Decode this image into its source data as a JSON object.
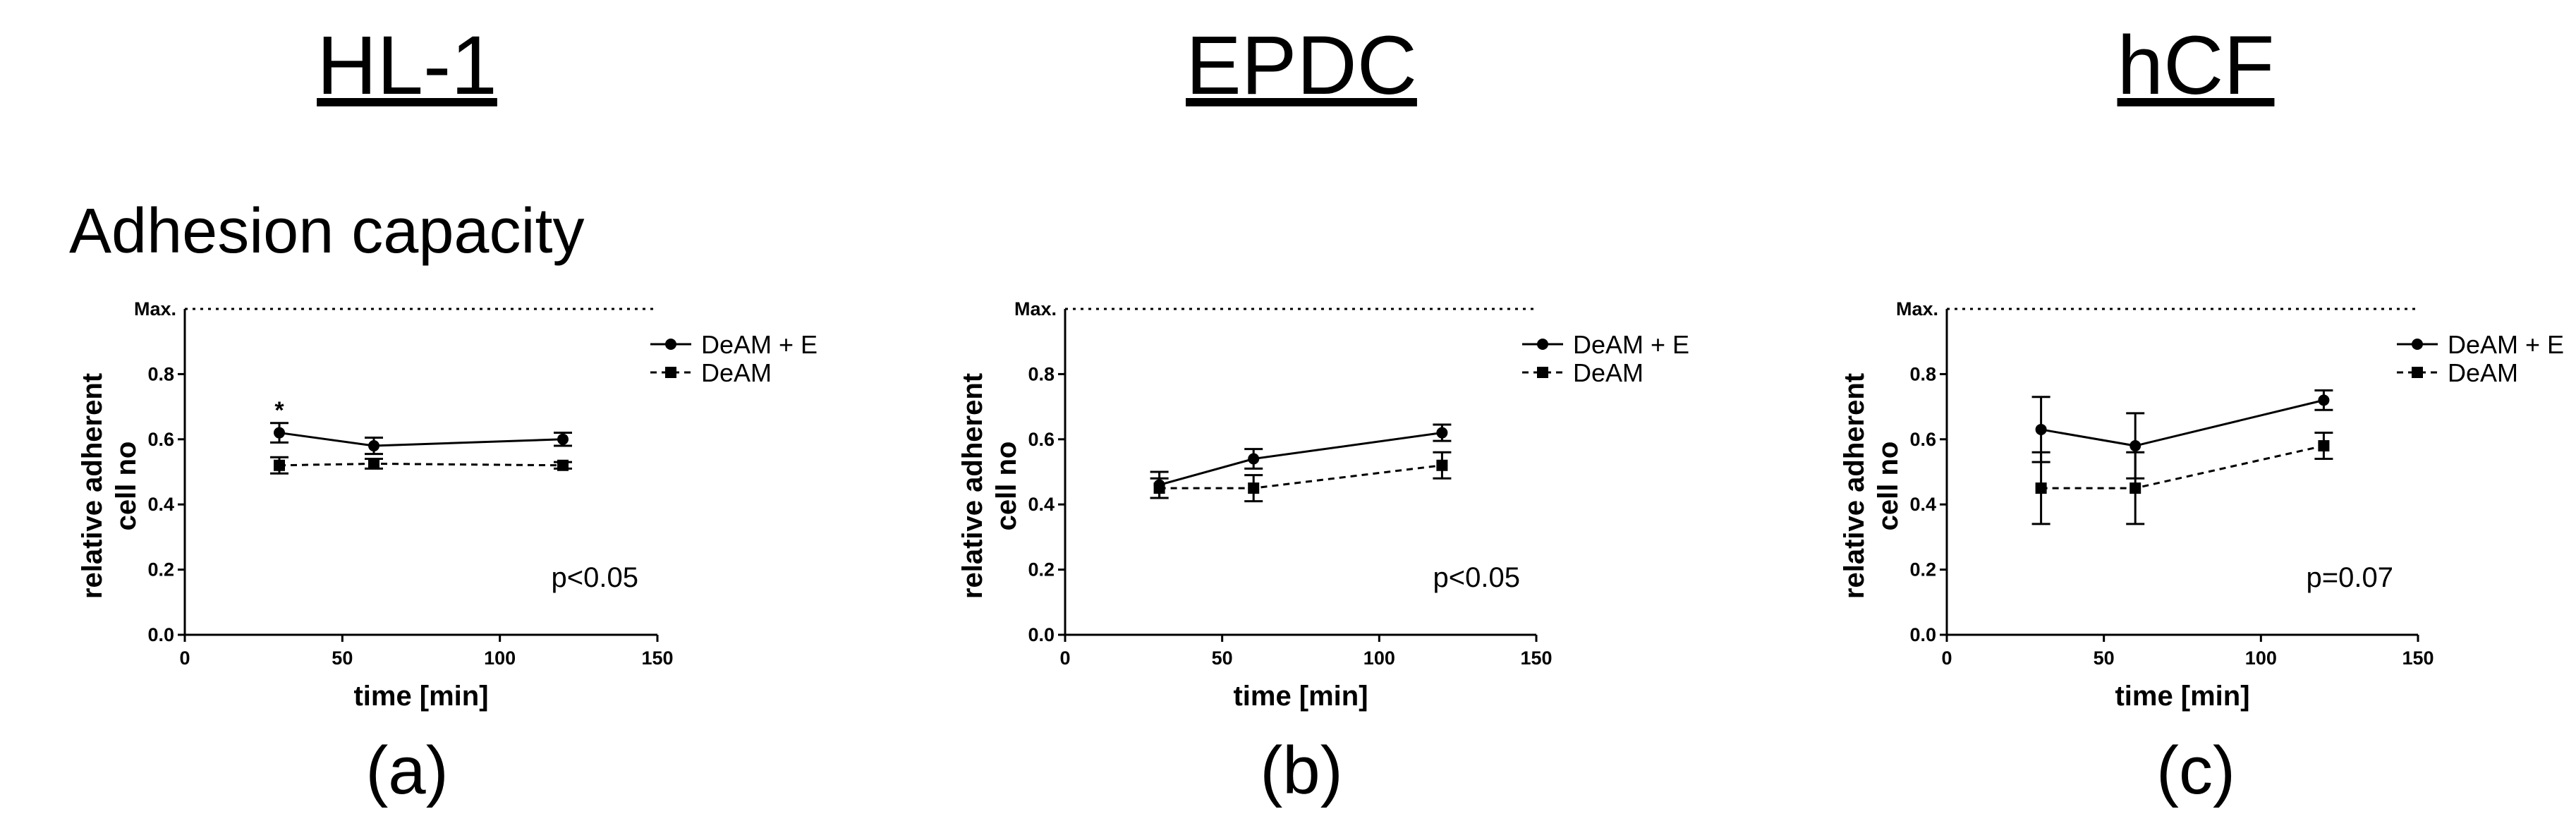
{
  "figure": {
    "section_title": "Adhesion capacity",
    "max_label": "Max."
  },
  "chart_data": [
    {
      "type": "line",
      "header": "HL-1",
      "panel_label": "(a)",
      "xlabel": "time [min]",
      "ylabel": [
        "relative adherent",
        "cell no"
      ],
      "xlim": [
        0,
        150
      ],
      "ylim": [
        0,
        1.0
      ],
      "xticks": [
        "0",
        "50",
        "100",
        "150"
      ],
      "yticks": [
        "0.0",
        "0.2",
        "0.4",
        "0.6",
        "0.8"
      ],
      "p_value": "p<0.05",
      "annotation": "*",
      "annotation_x": 30,
      "annotation_y": 0.665,
      "grid": false,
      "legend_position": "top-right",
      "series": [
        {
          "name": "DeAM + E",
          "marker": "circle",
          "line": "solid",
          "x": [
            30,
            60,
            120
          ],
          "y": [
            0.62,
            0.58,
            0.6
          ],
          "err": [
            0.03,
            0.025,
            0.02
          ]
        },
        {
          "name": "DeAM",
          "marker": "square",
          "line": "dashed",
          "x": [
            30,
            60,
            120
          ],
          "y": [
            0.52,
            0.525,
            0.52
          ],
          "err": [
            0.025,
            0.015,
            0.01
          ]
        }
      ]
    },
    {
      "type": "line",
      "header": "EPDC",
      "panel_label": "(b)",
      "xlabel": "time [min]",
      "ylabel": [
        "relative adherent",
        "cell no"
      ],
      "xlim": [
        0,
        150
      ],
      "ylim": [
        0,
        1.0
      ],
      "xticks": [
        "0",
        "50",
        "100",
        "150"
      ],
      "yticks": [
        "0.0",
        "0.2",
        "0.4",
        "0.6",
        "0.8"
      ],
      "p_value": "p<0.05",
      "grid": false,
      "legend_position": "top-right",
      "series": [
        {
          "name": "DeAM + E",
          "marker": "circle",
          "line": "solid",
          "x": [
            30,
            60,
            120
          ],
          "y": [
            0.46,
            0.54,
            0.62
          ],
          "err": [
            0.04,
            0.03,
            0.025
          ]
        },
        {
          "name": "DeAM",
          "marker": "square",
          "line": "dashed",
          "x": [
            30,
            60,
            120
          ],
          "y": [
            0.45,
            0.45,
            0.52
          ],
          "err": [
            0.03,
            0.04,
            0.04
          ]
        }
      ]
    },
    {
      "type": "line",
      "header": "hCF",
      "panel_label": "(c)",
      "xlabel": "time [min]",
      "ylabel": [
        "relative adherent",
        "cell no"
      ],
      "xlim": [
        0,
        150
      ],
      "ylim": [
        0,
        1.0
      ],
      "xticks": [
        "0",
        "50",
        "100",
        "150"
      ],
      "yticks": [
        "0.0",
        "0.2",
        "0.4",
        "0.6",
        "0.8"
      ],
      "p_value": "p=0.07",
      "grid": false,
      "legend_position": "top-right",
      "series": [
        {
          "name": "DeAM + E",
          "marker": "circle",
          "line": "solid",
          "x": [
            30,
            60,
            120
          ],
          "y": [
            0.63,
            0.58,
            0.72
          ],
          "err": [
            0.1,
            0.1,
            0.03
          ]
        },
        {
          "name": "DeAM",
          "marker": "square",
          "line": "dashed",
          "x": [
            30,
            60,
            120
          ],
          "y": [
            0.45,
            0.45,
            0.58
          ],
          "err": [
            0.11,
            0.11,
            0.04
          ]
        }
      ]
    }
  ]
}
